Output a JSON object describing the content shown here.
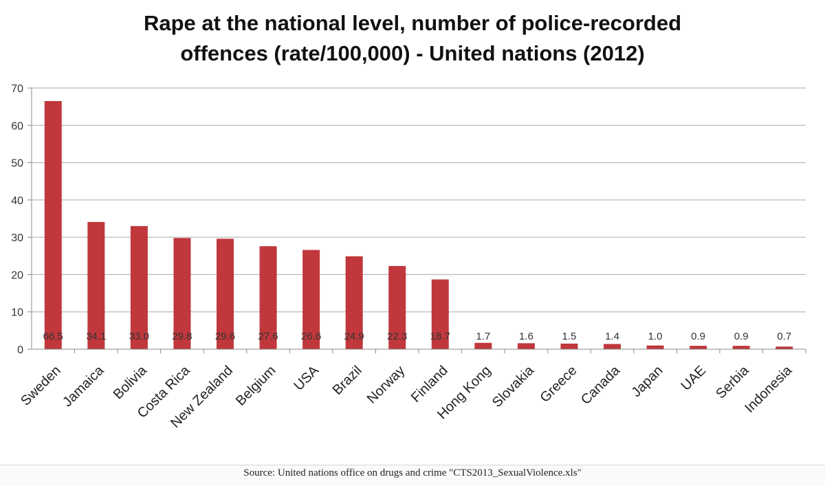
{
  "chart_data": {
    "type": "bar",
    "title_line1": "Rape at the national level, number of police-recorded",
    "title_line2": "offences (rate/100,000) - United nations (2012)",
    "categories": [
      "Sweden",
      "Jamaica",
      "Bolivia",
      "Costa Rica",
      "New Zealand",
      "Belgium",
      "USA",
      "Brazil",
      "Norway",
      "Finland",
      "Hong Kong",
      "Slovakia",
      "Greece",
      "Canada",
      "Japan",
      "UAE",
      "Serbia",
      "Indonesia"
    ],
    "values": [
      66.5,
      34.1,
      33.0,
      29.8,
      29.6,
      27.6,
      26.6,
      24.9,
      22.3,
      18.7,
      1.7,
      1.6,
      1.5,
      1.4,
      1.0,
      0.9,
      0.9,
      0.7
    ],
    "data_labels": [
      "66.5",
      "34.1",
      "33.0",
      "29.8",
      "29.6",
      "27.6",
      "26.6",
      "24.9",
      "22.3",
      "18.7",
      "1.7",
      "1.6",
      "1.5",
      "1.4",
      "1.0",
      "0.9",
      "0.9",
      "0.7"
    ],
    "y_ticks": [
      "0",
      "10",
      "20",
      "30",
      "40",
      "50",
      "60",
      "70"
    ],
    "ylim": [
      0,
      70
    ],
    "grid": true,
    "bar_color": "#c0383c",
    "source": "Source: United nations office on drugs and crime \"CTS2013_SexualViolence.xls\""
  }
}
